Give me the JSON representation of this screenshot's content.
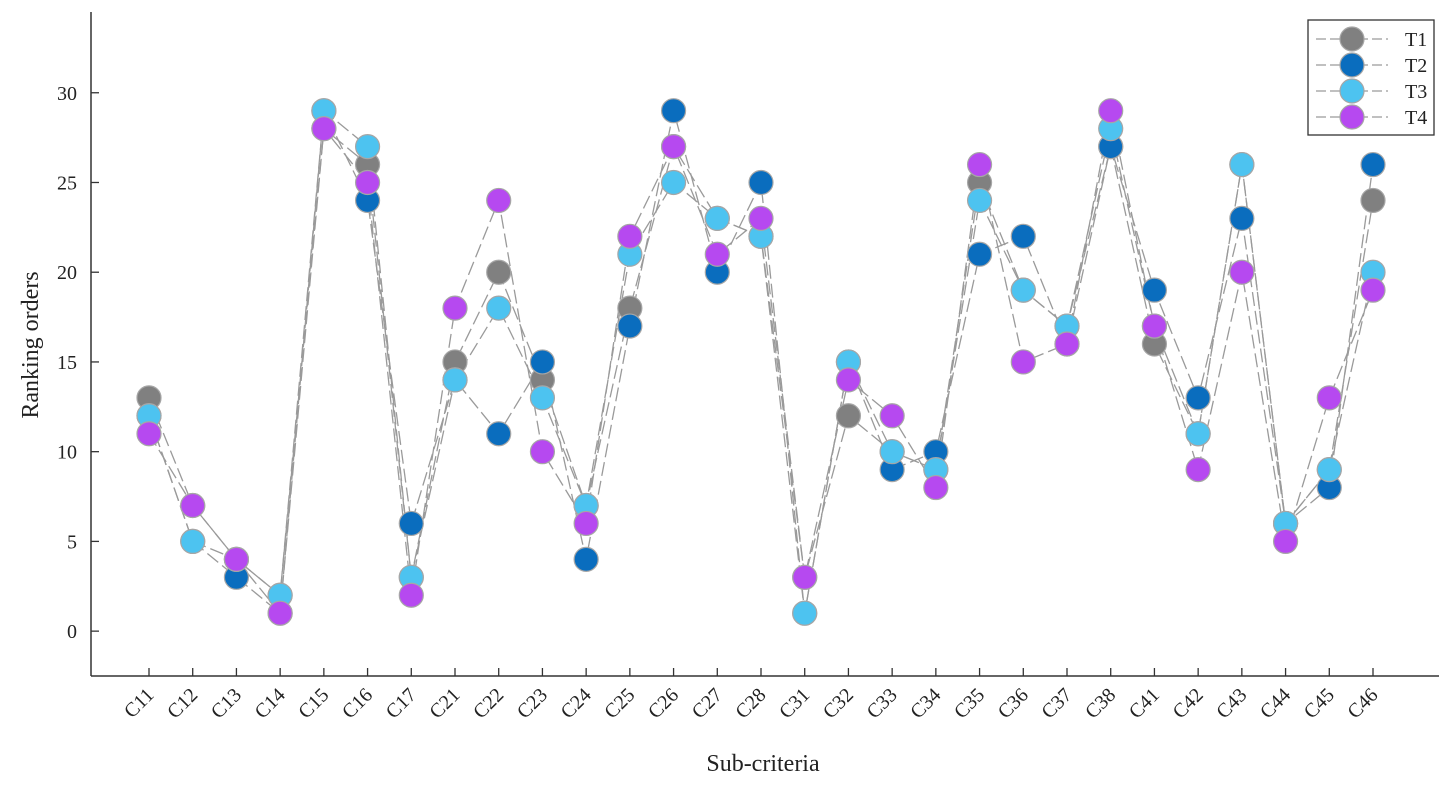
{
  "chart_data": {
    "type": "line",
    "xlabel": "Sub-criteria",
    "ylabel": "Ranking orders",
    "categories": [
      "C11",
      "C12",
      "C13",
      "C14",
      "C15",
      "C16",
      "C17",
      "C21",
      "C22",
      "C23",
      "C24",
      "C25",
      "C26",
      "C27",
      "C28",
      "C31",
      "C32",
      "C33",
      "C34",
      "C35",
      "C36",
      "C37",
      "C38",
      "C41",
      "C42",
      "C43",
      "C44",
      "C45",
      "C46"
    ],
    "y_ticks": [
      0,
      5,
      10,
      15,
      20,
      25,
      30
    ],
    "ylim": [
      -2.5,
      34.5
    ],
    "grid": false,
    "legend_position": "top-right",
    "series": [
      {
        "name": "T1",
        "color": "#808080",
        "values": [
          13,
          7,
          4,
          2,
          28,
          26,
          3,
          15,
          20,
          14,
          7,
          18,
          27,
          23,
          22,
          3,
          12,
          10,
          9,
          25,
          19,
          17,
          27,
          16,
          11,
          26,
          6,
          9,
          24
        ]
      },
      {
        "name": "T2",
        "color": "#0A6DBE",
        "values": [
          12,
          5,
          3,
          1,
          29,
          24,
          6,
          14,
          11,
          15,
          4,
          17,
          29,
          20,
          25,
          1,
          15,
          9,
          10,
          21,
          22,
          16,
          27,
          19,
          13,
          23,
          6,
          8,
          26
        ]
      },
      {
        "name": "T3",
        "color": "#4DC3F0",
        "values": [
          12,
          5,
          4,
          2,
          29,
          27,
          3,
          14,
          18,
          13,
          7,
          21,
          25,
          23,
          22,
          1,
          15,
          10,
          9,
          24,
          19,
          17,
          28,
          17,
          11,
          26,
          6,
          9,
          20
        ]
      },
      {
        "name": "T4",
        "color": "#B649F0",
        "values": [
          11,
          7,
          4,
          1,
          28,
          25,
          2,
          18,
          24,
          10,
          6,
          22,
          27,
          21,
          23,
          3,
          14,
          12,
          8,
          26,
          15,
          16,
          29,
          17,
          9,
          20,
          5,
          13,
          19
        ]
      }
    ]
  }
}
